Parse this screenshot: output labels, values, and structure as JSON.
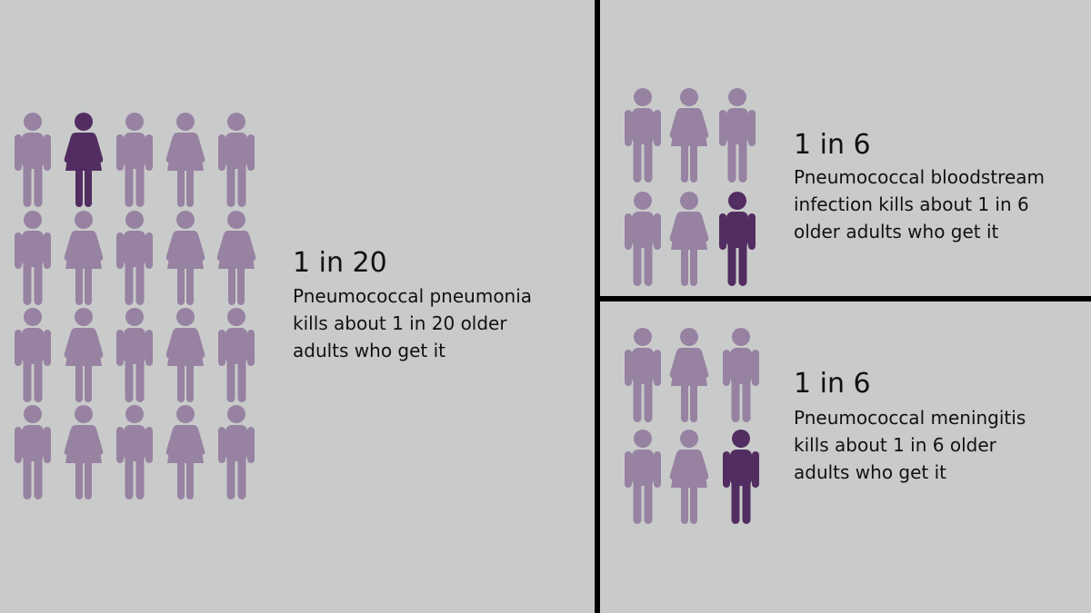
{
  "colors": {
    "background": "#c9cbca",
    "figure": "#9782a2",
    "highlight": "#522d61",
    "divider": "#000000"
  },
  "panels": [
    {
      "stat": "1 in 20",
      "lines": [
        "Pneumococcal pneumonia",
        "kills about 1 in 20 older",
        "adults who get it"
      ],
      "figures": [
        [
          "man",
          "woman*",
          "man",
          "woman",
          "man"
        ],
        [
          "man",
          "woman",
          "man",
          "woman",
          "woman"
        ],
        [
          "man",
          "woman",
          "man",
          "woman",
          "man"
        ],
        [
          "man",
          "woman",
          "man",
          "woman",
          "man"
        ]
      ]
    },
    {
      "stat": "1 in 6",
      "lines": [
        "Pneumococcal bloodstream",
        "infection kills about 1 in 6",
        "older adults who get it"
      ],
      "figures": [
        [
          "man",
          "woman",
          "man"
        ],
        [
          "man",
          "woman",
          "man*"
        ]
      ]
    },
    {
      "stat": "1 in 6",
      "lines": [
        "Pneumococcal meningitis",
        "kills about 1 in 6 older",
        "adults who get it"
      ],
      "figures": [
        [
          "man",
          "woman",
          "man"
        ],
        [
          "man",
          "woman",
          "man*"
        ]
      ]
    }
  ]
}
